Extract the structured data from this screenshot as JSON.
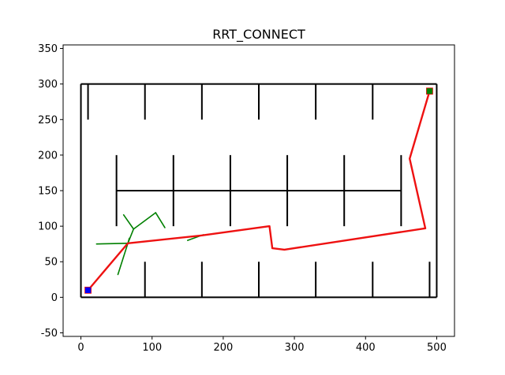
{
  "chart_data": {
    "type": "line",
    "title": "RRT_CONNECT",
    "xlabel": "",
    "ylabel": "",
    "xlim": [
      -25,
      525
    ],
    "ylim": [
      -55,
      355
    ],
    "xticks": [
      0,
      100,
      200,
      300,
      400,
      500
    ],
    "yticks": [
      -50,
      0,
      50,
      100,
      150,
      200,
      250,
      300,
      350
    ],
    "grid": false,
    "legend": "none",
    "walls": [
      [
        [
          0,
          0
        ],
        [
          500,
          0
        ]
      ],
      [
        [
          0,
          300
        ],
        [
          500,
          300
        ]
      ],
      [
        [
          0,
          0
        ],
        [
          0,
          300
        ]
      ],
      [
        [
          500,
          0
        ],
        [
          500,
          300
        ]
      ],
      [
        [
          10,
          250
        ],
        [
          10,
          300
        ]
      ],
      [
        [
          90,
          250
        ],
        [
          90,
          300
        ]
      ],
      [
        [
          170,
          250
        ],
        [
          170,
          300
        ]
      ],
      [
        [
          250,
          250
        ],
        [
          250,
          300
        ]
      ],
      [
        [
          330,
          250
        ],
        [
          330,
          300
        ]
      ],
      [
        [
          410,
          250
        ],
        [
          410,
          300
        ]
      ],
      [
        [
          50,
          150
        ],
        [
          450,
          150
        ]
      ],
      [
        [
          50,
          100
        ],
        [
          50,
          200
        ]
      ],
      [
        [
          130,
          100
        ],
        [
          130,
          200
        ]
      ],
      [
        [
          210,
          100
        ],
        [
          210,
          200
        ]
      ],
      [
        [
          290,
          100
        ],
        [
          290,
          200
        ]
      ],
      [
        [
          370,
          100
        ],
        [
          370,
          200
        ]
      ],
      [
        [
          450,
          100
        ],
        [
          450,
          200
        ]
      ],
      [
        [
          90,
          0
        ],
        [
          90,
          50
        ]
      ],
      [
        [
          170,
          0
        ],
        [
          170,
          50
        ]
      ],
      [
        [
          250,
          0
        ],
        [
          250,
          50
        ]
      ],
      [
        [
          330,
          0
        ],
        [
          330,
          50
        ]
      ],
      [
        [
          410,
          0
        ],
        [
          410,
          50
        ]
      ],
      [
        [
          490,
          0
        ],
        [
          490,
          50
        ]
      ]
    ],
    "tree_edges": [
      [
        [
          10,
          10
        ],
        [
          66,
          76
        ]
      ],
      [
        [
          66,
          76
        ],
        [
          22,
          75
        ]
      ],
      [
        [
          66,
          76
        ],
        [
          52,
          32
        ]
      ],
      [
        [
          66,
          76
        ],
        [
          74,
          96
        ]
      ],
      [
        [
          74,
          96
        ],
        [
          60,
          116
        ]
      ],
      [
        [
          74,
          96
        ],
        [
          105,
          119
        ]
      ],
      [
        [
          105,
          119
        ],
        [
          118,
          98
        ]
      ],
      [
        [
          66,
          76
        ],
        [
          68,
          83
        ]
      ],
      [
        [
          150,
          80
        ],
        [
          172,
          88
        ]
      ],
      [
        [
          66,
          76
        ],
        [
          170,
          87
        ]
      ]
    ],
    "path": {
      "x": [
        10,
        66,
        170,
        265,
        269,
        286,
        484,
        462,
        490
      ],
      "y": [
        10,
        76,
        87,
        100,
        69,
        67,
        97,
        195,
        290
      ]
    },
    "start": {
      "x": 10,
      "y": 10
    },
    "goal": {
      "x": 490,
      "y": 290
    },
    "colors": {
      "walls": "#000000",
      "tree": "#008000",
      "path": "#ee1111",
      "start": "#0000ff",
      "goal": "#008000",
      "axes": "#000000"
    }
  }
}
